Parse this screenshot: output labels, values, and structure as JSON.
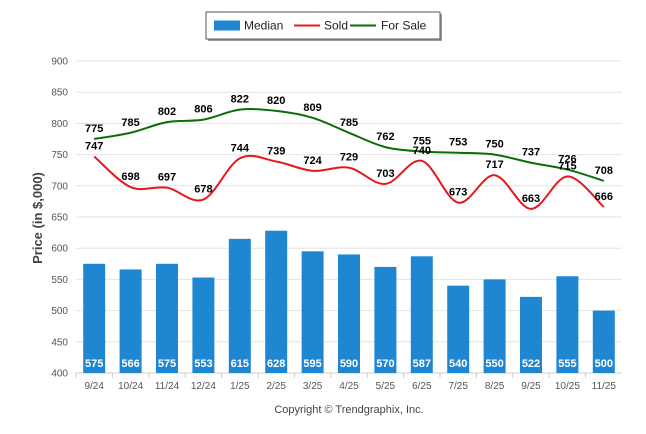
{
  "chart_data": {
    "type": "bar",
    "categories": [
      "9/24",
      "10/24",
      "11/24",
      "12/24",
      "1/25",
      "2/25",
      "3/25",
      "4/25",
      "5/25",
      "6/25",
      "7/25",
      "8/25",
      "9/25",
      "10/25",
      "11/25"
    ],
    "ylabel": "Price (in $,000)",
    "ylim": [
      400,
      900
    ],
    "yticks": [
      400,
      450,
      500,
      550,
      600,
      650,
      700,
      750,
      800,
      850,
      900
    ],
    "grid": true,
    "legend_position": "top-center",
    "series": [
      {
        "name": "Median",
        "type": "bar",
        "color": "#1f87d1",
        "values": [
          575,
          566,
          575,
          553,
          615,
          628,
          595,
          590,
          570,
          587,
          540,
          550,
          522,
          555,
          500
        ]
      },
      {
        "name": "Sold",
        "type": "line",
        "color": "#e31a1c",
        "values": [
          747,
          698,
          697,
          678,
          744,
          739,
          724,
          729,
          703,
          740,
          673,
          717,
          663,
          715,
          666
        ]
      },
      {
        "name": "For Sale",
        "type": "line",
        "color": "#0a6e0a",
        "values": [
          775,
          785,
          802,
          806,
          822,
          820,
          809,
          785,
          762,
          755,
          753,
          750,
          737,
          726,
          708
        ]
      }
    ],
    "footer": "Copyright © Trendgraphix, Inc."
  }
}
